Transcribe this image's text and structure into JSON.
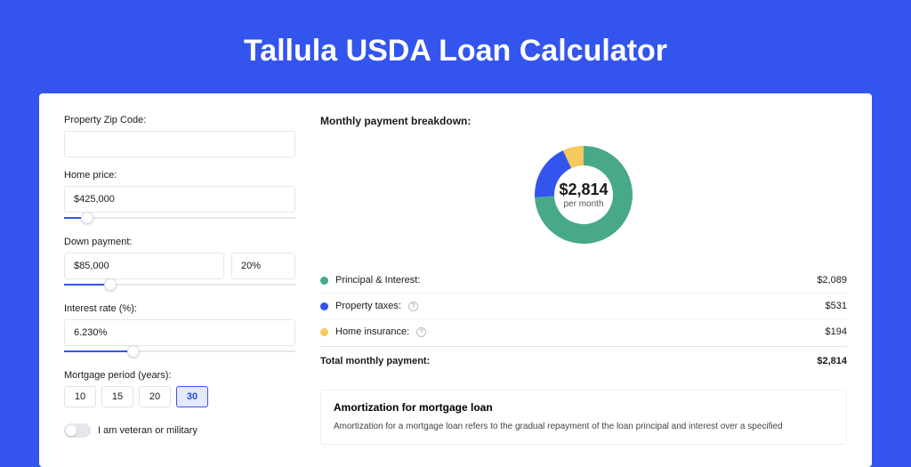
{
  "page": {
    "title": "Tallula USDA Loan Calculator",
    "background_color": "#3355ee"
  },
  "form": {
    "zip": {
      "label": "Property Zip Code:",
      "value": ""
    },
    "home_price": {
      "label": "Home price:",
      "value": "$425,000",
      "slider_pct": 10
    },
    "down_payment": {
      "label": "Down payment:",
      "value": "$85,000",
      "pct_value": "20%",
      "slider_pct": 20
    },
    "interest_rate": {
      "label": "Interest rate (%):",
      "value": "6.230%",
      "slider_pct": 30
    },
    "mortgage_period": {
      "label": "Mortgage period (years):",
      "options": [
        "10",
        "15",
        "20",
        "30"
      ],
      "selected": "30"
    },
    "veteran": {
      "label": "I am veteran or military",
      "checked": false
    }
  },
  "breakdown": {
    "title": "Monthly payment breakdown:",
    "center_amount": "$2,814",
    "center_sub": "per month",
    "donut": {
      "type": "pie",
      "slices": [
        {
          "key": "principal_interest",
          "value": 2089,
          "color": "#47a98a"
        },
        {
          "key": "property_taxes",
          "value": 531,
          "color": "#3355ee"
        },
        {
          "key": "home_insurance",
          "value": 194,
          "color": "#f4c95d"
        }
      ],
      "ring_width": 22,
      "background": "#ffffff"
    },
    "items": [
      {
        "label": "Principal & Interest:",
        "value": "$2,089",
        "color": "#47a98a",
        "info": false
      },
      {
        "label": "Property taxes:",
        "value": "$531",
        "color": "#3355ee",
        "info": true
      },
      {
        "label": "Home insurance:",
        "value": "$194",
        "color": "#f4c95d",
        "info": true
      }
    ],
    "total": {
      "label": "Total monthly payment:",
      "value": "$2,814"
    }
  },
  "amortization": {
    "title": "Amortization for mortgage loan",
    "text": "Amortization for a mortgage loan refers to the gradual repayment of the loan principal and interest over a specified"
  }
}
